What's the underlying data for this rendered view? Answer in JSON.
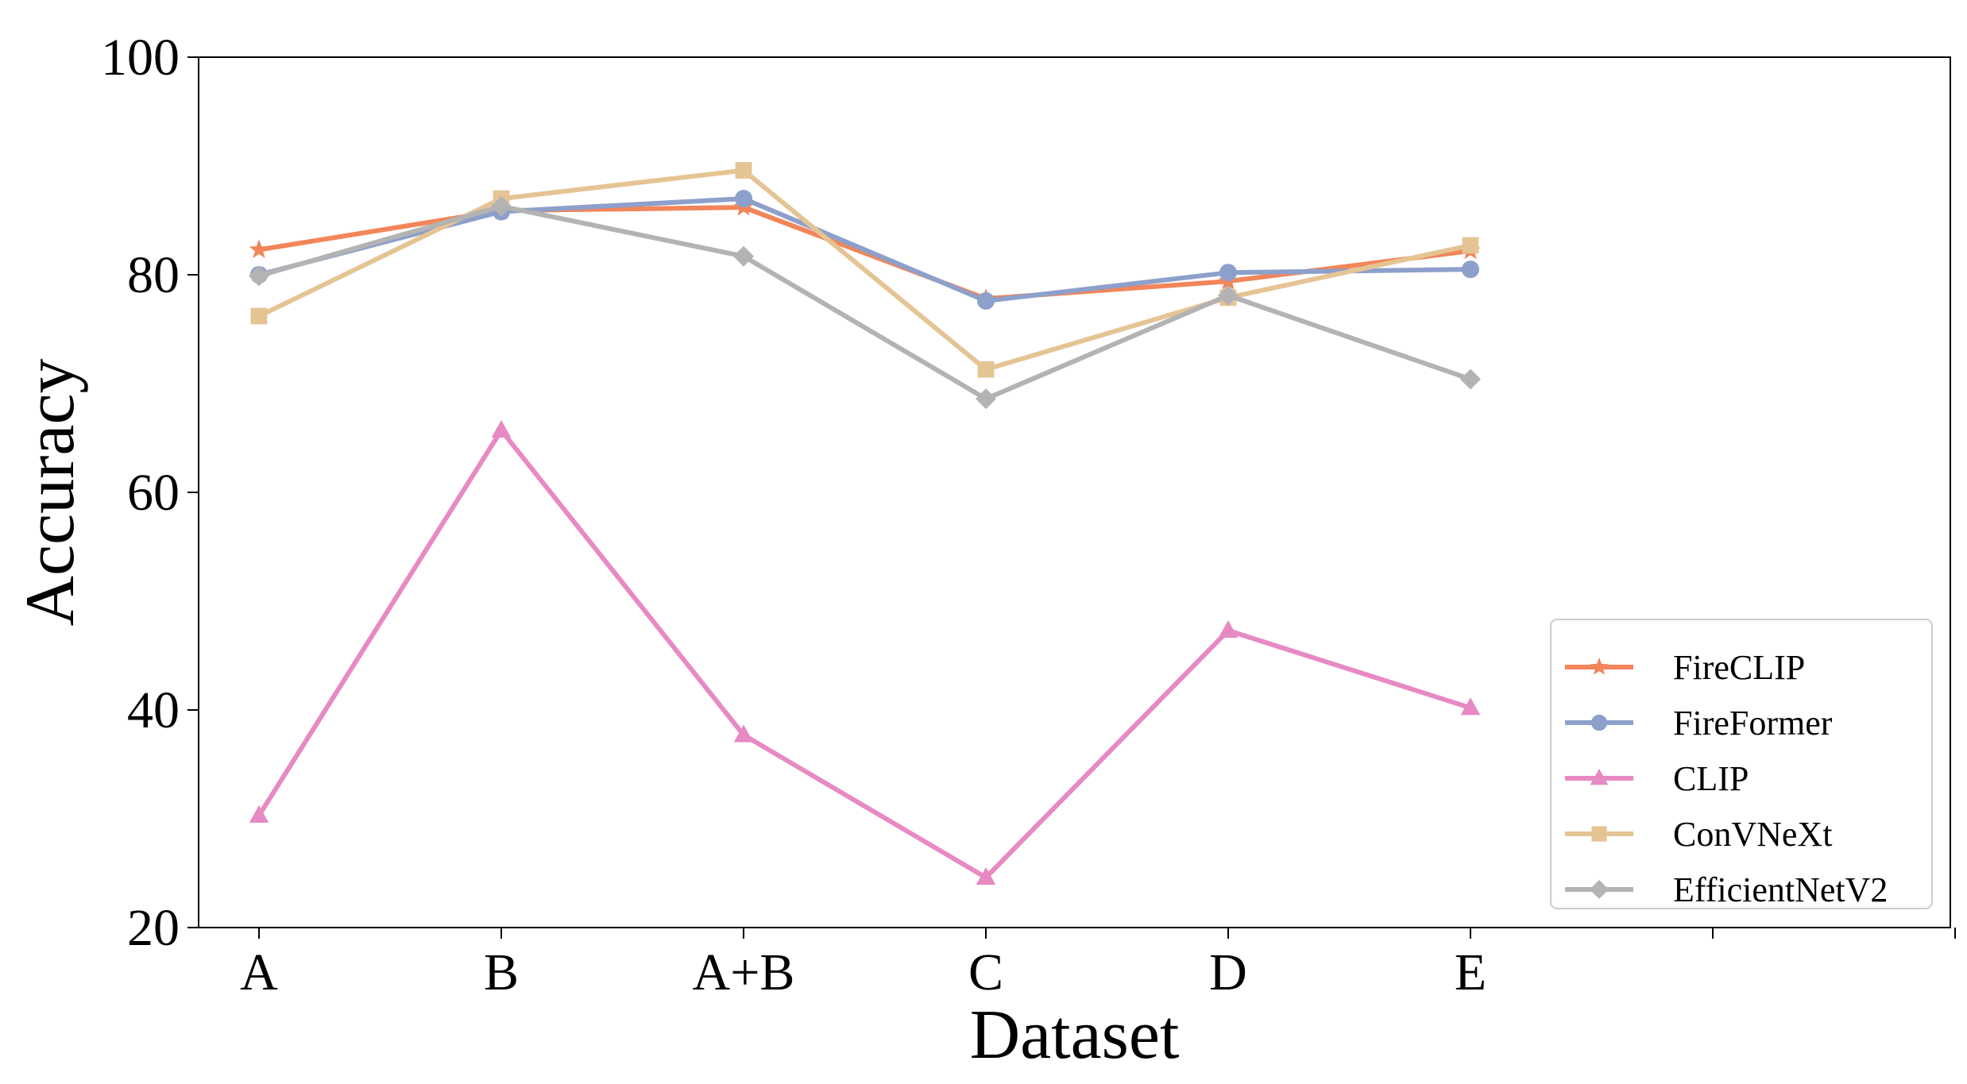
{
  "chart_data": {
    "type": "line",
    "title": "",
    "xlabel": "Dataset",
    "ylabel": "Accuracy",
    "categories": [
      "A",
      "B",
      "A+B",
      "C",
      "D",
      "E"
    ],
    "extra_xticks": 2,
    "ylim": [
      20,
      100
    ],
    "yticks": [
      20,
      40,
      60,
      80,
      100
    ],
    "grid": false,
    "legend_position": "lower-right",
    "series": [
      {
        "name": "FireCLIP",
        "values": [
          82.3,
          85.9,
          86.2,
          77.8,
          79.4,
          82.2
        ],
        "color": "#f2855a",
        "marker": "star"
      },
      {
        "name": "FireFormer",
        "values": [
          80.0,
          85.8,
          87.0,
          77.6,
          80.2,
          80.5
        ],
        "color": "#8da0cb",
        "marker": "circle"
      },
      {
        "name": "CLIP",
        "values": [
          30.3,
          65.7,
          37.7,
          24.6,
          47.3,
          40.2
        ],
        "color": "#e78ac3",
        "marker": "triangle"
      },
      {
        "name": "ConVNeXt",
        "values": [
          76.2,
          87.0,
          89.6,
          71.3,
          77.9,
          82.7
        ],
        "color": "#e5c494",
        "marker": "square"
      },
      {
        "name": "EfficientNetV2",
        "values": [
          79.9,
          86.3,
          81.7,
          68.6,
          78.1,
          70.4
        ],
        "color": "#b3b3b3",
        "marker": "diamond"
      }
    ]
  }
}
